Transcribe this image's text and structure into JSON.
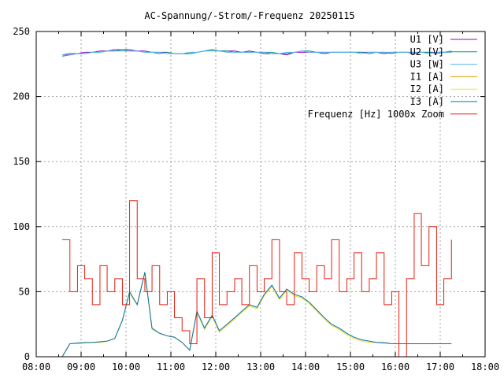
{
  "chart_data": {
    "type": "line",
    "title": "AC-Spannung/-Strom/-Frequenz 20250115",
    "xlabel": "",
    "ylabel": "",
    "xlim": [
      8,
      18
    ],
    "ylim": [
      0,
      250
    ],
    "grid": true,
    "legend_position": "top-right",
    "x_ticks": [
      {
        "v": 8,
        "label": "08:00"
      },
      {
        "v": 9,
        "label": "09:00"
      },
      {
        "v": 10,
        "label": "10:00"
      },
      {
        "v": 11,
        "label": "11:00"
      },
      {
        "v": 12,
        "label": "12:00"
      },
      {
        "v": 13,
        "label": "13:00"
      },
      {
        "v": 14,
        "label": "14:00"
      },
      {
        "v": 15,
        "label": "15:00"
      },
      {
        "v": 16,
        "label": "16:00"
      },
      {
        "v": 17,
        "label": "17:00"
      },
      {
        "v": 18,
        "label": "18:00"
      }
    ],
    "y_ticks": [
      {
        "v": 0,
        "label": "0"
      },
      {
        "v": 50,
        "label": "50"
      },
      {
        "v": 100,
        "label": "100"
      },
      {
        "v": 150,
        "label": "150"
      },
      {
        "v": 200,
        "label": "200"
      },
      {
        "v": 250,
        "label": "250"
      }
    ],
    "x": [
      8.58,
      8.75,
      8.92,
      9.08,
      9.25,
      9.42,
      9.58,
      9.75,
      9.92,
      10.08,
      10.25,
      10.42,
      10.58,
      10.75,
      10.92,
      11.08,
      11.25,
      11.42,
      11.58,
      11.75,
      11.92,
      12.08,
      12.25,
      12.42,
      12.58,
      12.75,
      12.92,
      13.08,
      13.25,
      13.42,
      13.58,
      13.75,
      13.92,
      14.08,
      14.25,
      14.42,
      14.58,
      14.75,
      14.92,
      15.08,
      15.25,
      15.42,
      15.58,
      15.75,
      15.92,
      16.08,
      16.25,
      16.42,
      16.58,
      16.75,
      16.92,
      17.08,
      17.25
    ],
    "series": [
      {
        "name": "U1 [V]",
        "color": "#9400d3",
        "values": [
          232,
          233,
          233,
          234,
          234,
          235,
          235,
          236,
          236,
          236,
          235,
          235,
          234,
          234,
          234,
          233,
          233,
          233,
          234,
          235,
          236,
          235,
          235,
          235,
          234,
          235,
          234,
          233,
          233,
          233,
          232,
          234,
          234,
          234,
          234,
          233,
          234,
          234,
          234,
          234,
          234,
          234,
          234,
          233,
          234,
          234,
          234,
          233,
          234,
          234,
          234,
          234,
          234
        ]
      },
      {
        "name": "U2 [V]",
        "color": "#009e73",
        "values": [
          231,
          232,
          233,
          233,
          234,
          234,
          235,
          235,
          236,
          235,
          235,
          234,
          234,
          233,
          234,
          233,
          233,
          233,
          234,
          235,
          236,
          235,
          235,
          234,
          234,
          234,
          234,
          234,
          234,
          233,
          233,
          234,
          235,
          235,
          234,
          234,
          234,
          234,
          234,
          234,
          234,
          233,
          234,
          234,
          233,
          234,
          234,
          234,
          234,
          234,
          233,
          234,
          235
        ]
      },
      {
        "name": "U3 [W]",
        "color": "#56b4e9",
        "values": [
          232,
          232,
          233,
          233,
          234,
          234,
          235,
          235,
          235,
          235,
          235,
          234,
          234,
          234,
          233,
          233,
          233,
          234,
          234,
          235,
          235,
          235,
          234,
          234,
          234,
          234,
          234,
          234,
          233,
          233,
          234,
          234,
          235,
          234,
          234,
          234,
          234,
          234,
          234,
          234,
          233,
          234,
          234,
          234,
          234,
          234,
          234,
          234,
          234,
          233,
          234,
          234,
          234
        ]
      },
      {
        "name": "I1 [A]",
        "color": "#e69f00",
        "values": [
          0,
          10,
          10,
          10.5,
          11,
          11,
          12,
          14,
          28,
          49,
          40,
          64,
          21,
          18,
          16,
          15,
          11,
          5,
          34,
          21,
          31,
          19,
          24,
          29,
          34,
          39,
          37,
          47,
          54,
          44,
          51,
          47,
          45,
          41,
          35,
          29,
          24,
          21,
          17,
          14,
          12,
          11,
          11,
          10,
          10,
          10,
          10,
          10,
          10,
          10,
          10,
          10,
          10
        ]
      },
      {
        "name": "I2 [A]",
        "color": "#f0e442",
        "values": [
          0,
          10,
          10,
          10.5,
          11,
          11,
          12,
          14,
          28,
          49,
          40,
          64,
          21,
          18,
          16,
          15,
          11,
          5,
          34,
          21,
          31,
          19,
          24,
          29,
          34,
          39,
          37,
          47,
          54,
          44,
          51,
          47,
          45,
          41,
          35,
          29,
          24,
          21,
          17,
          14,
          12,
          11,
          11,
          10,
          10,
          10,
          10,
          10,
          10,
          10,
          10,
          10,
          10
        ]
      },
      {
        "name": "I3 [A]",
        "color": "#0072b2",
        "values": [
          0,
          10,
          10.5,
          11,
          11,
          11.5,
          12,
          14,
          28,
          50,
          40,
          65,
          22,
          18,
          16,
          15,
          11,
          5,
          35,
          22,
          32,
          20,
          25,
          30,
          35,
          40,
          38,
          48,
          55,
          45,
          52,
          48,
          46,
          42,
          36,
          30,
          25,
          22,
          18,
          15,
          13,
          12,
          11,
          11,
          10,
          10,
          10,
          10,
          10,
          10,
          10,
          10,
          10
        ]
      },
      {
        "name": "Frequenz [Hz] 1000x Zoom",
        "color": "#e51e10",
        "values": [
          90,
          50,
          70,
          60,
          40,
          70,
          50,
          60,
          40,
          120,
          60,
          50,
          70,
          40,
          50,
          30,
          20,
          10,
          60,
          30,
          80,
          40,
          50,
          60,
          40,
          70,
          50,
          60,
          90,
          50,
          40,
          80,
          60,
          50,
          70,
          60,
          90,
          50,
          60,
          80,
          50,
          60,
          80,
          40,
          50,
          0,
          60,
          110,
          70,
          100,
          40,
          60,
          90
        ]
      }
    ]
  }
}
